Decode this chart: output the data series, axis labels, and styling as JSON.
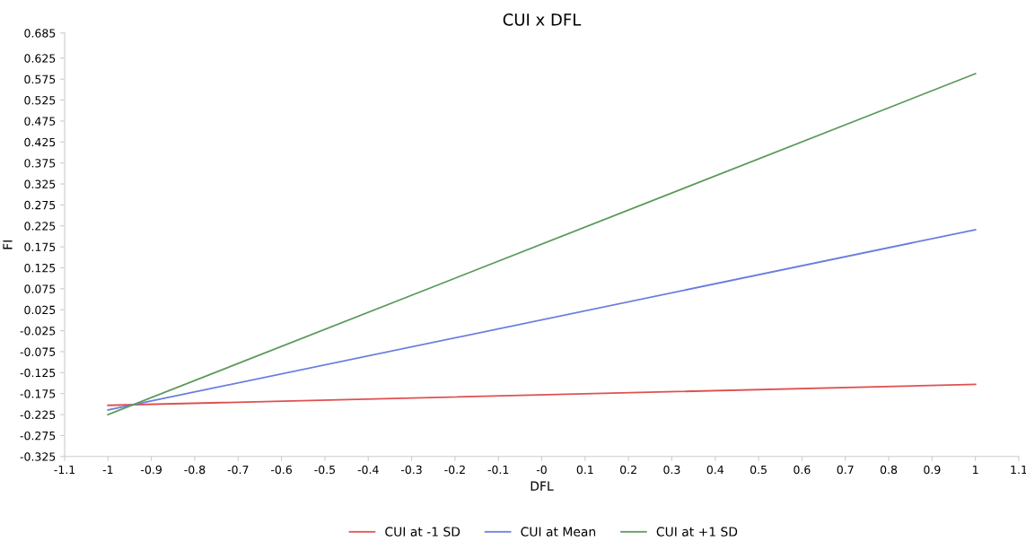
{
  "chart_data": {
    "type": "line",
    "title": "CUI x DFL",
    "xlabel": "DFL",
    "ylabel": "FI",
    "x": [
      -1,
      1
    ],
    "series": [
      {
        "name": "CUI at -1 SD",
        "color": "#e05050",
        "values": [
          -0.203,
          -0.153
        ]
      },
      {
        "name": "CUI at Mean",
        "color": "#6a7de0",
        "values": [
          -0.214,
          0.216
        ]
      },
      {
        "name": "CUI at +1 SD",
        "color": "#5c9a5c",
        "values": [
          -0.225,
          0.588
        ]
      }
    ],
    "xlim": [
      -1.1,
      1.1
    ],
    "xticks": [
      -1.1,
      -1,
      -0.9,
      -0.8,
      -0.7,
      -0.6,
      -0.5,
      -0.4,
      -0.3,
      -0.2,
      -0.1,
      {
        "value": 0,
        "label": "-0"
      },
      0.1,
      0.2,
      0.3,
      0.4,
      0.5,
      0.6,
      0.7,
      0.8,
      0.9,
      1,
      1.1
    ],
    "ylim": [
      -0.325,
      0.685
    ],
    "yticks": [
      -0.325,
      -0.275,
      -0.225,
      -0.175,
      -0.125,
      -0.075,
      -0.025,
      0.025,
      0.075,
      0.125,
      0.175,
      0.225,
      0.275,
      0.325,
      0.375,
      0.425,
      0.475,
      0.525,
      0.575,
      0.625,
      0.685
    ],
    "grid": false,
    "legend": "bottom",
    "marker": "none",
    "line_style": "solid"
  }
}
